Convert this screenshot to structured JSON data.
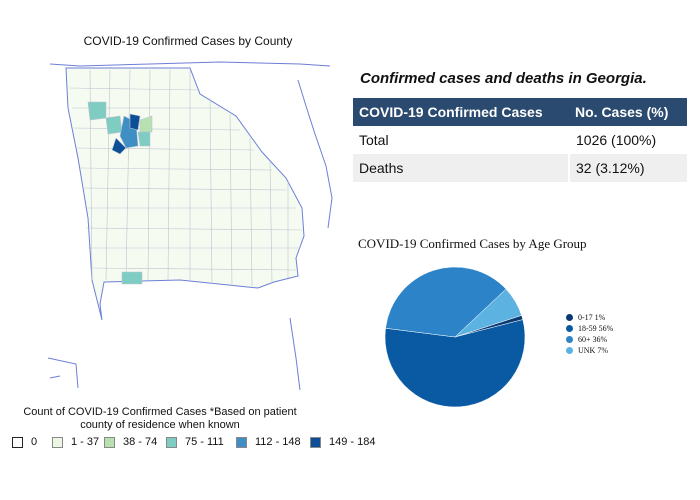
{
  "map": {
    "title": "COVID-19 Confirmed Cases by County",
    "legend_title": "Count of COVID-19 Confirmed Cases *Based on patient county of residence when known",
    "legend": [
      {
        "label": "0",
        "color": "#ffffff"
      },
      {
        "label": "1 - 37",
        "color": "#eef6e6"
      },
      {
        "label": "38 - 74",
        "color": "#b9e0b0"
      },
      {
        "label": "75 - 111",
        "color": "#7fcdc2"
      },
      {
        "label": "112 - 148",
        "color": "#3f8fc4"
      },
      {
        "label": "149 - 184",
        "color": "#0c4f97"
      }
    ]
  },
  "table": {
    "title": "Confirmed cases and deaths in Georgia.",
    "headers": [
      "COVID-19 Confirmed Cases",
      "No. Cases (%)"
    ],
    "rows": [
      [
        "Total",
        "1026 (100%)"
      ],
      [
        "Deaths",
        "32 (3.12%)"
      ]
    ]
  },
  "chart_data": {
    "type": "pie",
    "title": "COVID-19 Confirmed Cases by Age Group",
    "legend_placement": "right",
    "slices": [
      {
        "label": "0-17 1%",
        "value": 1,
        "color": "#0b3a73"
      },
      {
        "label": "18-59 56%",
        "value": 56,
        "color": "#0a5aa3"
      },
      {
        "label": "60+ 36%",
        "value": 36,
        "color": "#2c83c7"
      },
      {
        "label": "UNK 7%",
        "value": 7,
        "color": "#5cb2e0"
      }
    ]
  }
}
